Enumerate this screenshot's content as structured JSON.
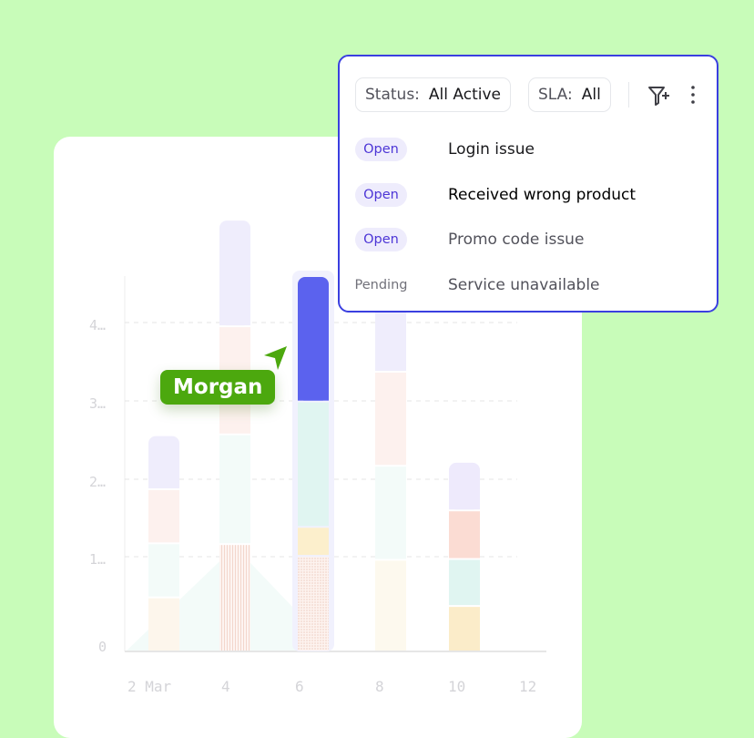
{
  "chart_data": {
    "type": "bar",
    "stacked": true,
    "categories": [
      "2 Mar",
      "4",
      "6",
      "8",
      "10",
      "12"
    ],
    "x_ticks": [
      "2 Mar",
      "4",
      "6",
      "8",
      "10",
      "12"
    ],
    "y_ticks": [
      "0",
      "1…",
      "2…",
      "3…",
      "4…"
    ],
    "grid": "horizontal-dashed",
    "series": [
      {
        "values": [
          0.69,
          1.37,
          1.22,
          1.17,
          0.58,
          0
        ],
        "color": "#fbecc9"
      },
      {
        "values": [
          0,
          0,
          0.37,
          0,
          0,
          0
        ],
        "color": "#fcefcc"
      },
      {
        "values": [
          0.69,
          1.4,
          1.6,
          1.2,
          0.6,
          0
        ],
        "color": "#e0f5f1"
      },
      {
        "values": [
          0.69,
          1.38,
          0,
          1.2,
          0.62,
          0
        ],
        "color": "#fbdcd3"
      },
      {
        "values": [
          0.69,
          1.36,
          1.6,
          0.95,
          0.62,
          0
        ],
        "color": "#eeeafc"
      }
    ],
    "highlighted": {
      "category": "6",
      "color": "#5b62ee"
    }
  },
  "tooltip": {
    "label": "Morgan",
    "color": "#4ca80e"
  },
  "filter_panel": {
    "status_label": "Status:",
    "status_value": "All Active",
    "sla_label": "SLA:",
    "sla_value": "All",
    "add_filter_icon": "filter-plus-icon",
    "more_icon": "more-vertical-icon",
    "tickets": [
      {
        "status": "Open",
        "title": "Login issue"
      },
      {
        "status": "Open",
        "title": "Received wrong product"
      },
      {
        "status": "Open",
        "title": "Promo code issue"
      },
      {
        "status": "Pending",
        "title": "Service unavailable"
      }
    ]
  },
  "colors": {
    "background": "#c8fcb9",
    "accent": "#3a3fe0",
    "badge_text": "#4c35d6"
  }
}
